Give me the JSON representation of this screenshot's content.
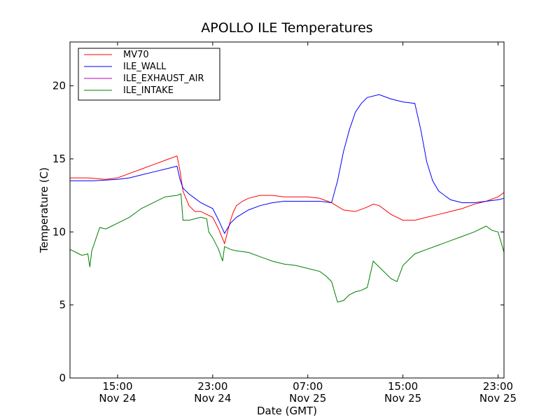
{
  "chart_data": {
    "type": "line",
    "title": "APOLLO ILE Temperatures",
    "xlabel": "Date (GMT)",
    "ylabel": "Temperature (C)",
    "xlim": [
      "2012-11-24 11:00",
      "2012-11-25 23:30"
    ],
    "ylim": [
      0,
      23
    ],
    "x_ticks": [
      {
        "time": "2012-11-24 15:00",
        "line1": "15:00",
        "line2": "Nov 24"
      },
      {
        "time": "2012-11-24 23:00",
        "line1": "23:00",
        "line2": "Nov 24"
      },
      {
        "time": "2012-11-25 07:00",
        "line1": "07:00",
        "line2": "Nov 25"
      },
      {
        "time": "2012-11-25 15:00",
        "line1": "15:00",
        "line2": "Nov 25"
      },
      {
        "time": "2012-11-25 23:00",
        "line1": "23:00",
        "line2": "Nov 25"
      }
    ],
    "y_ticks": [
      0,
      5,
      10,
      15,
      20
    ],
    "grid": false,
    "legend_position": "top-left",
    "series": [
      {
        "name": "MV70",
        "color": "#ff0000",
        "x": [
          "2012-11-24 11:00",
          "2012-11-24 12:30",
          "2012-11-24 14:00",
          "2012-11-24 15:00",
          "2012-11-24 16:00",
          "2012-11-24 17:00",
          "2012-11-24 18:00",
          "2012-11-24 19:00",
          "2012-11-24 20:00",
          "2012-11-24 20:15",
          "2012-11-24 20:30",
          "2012-11-24 21:00",
          "2012-11-24 21:30",
          "2012-11-24 22:00",
          "2012-11-24 23:00",
          "2012-11-24 23:30",
          "2012-11-25 00:00",
          "2012-11-25 00:30",
          "2012-11-25 00:45",
          "2012-11-25 01:00",
          "2012-11-25 01:30",
          "2012-11-25 02:00",
          "2012-11-25 03:00",
          "2012-11-25 04:00",
          "2012-11-25 05:00",
          "2012-11-25 06:00",
          "2012-11-25 07:00",
          "2012-11-25 08:00",
          "2012-11-25 09:00",
          "2012-11-25 10:00",
          "2012-11-25 11:00",
          "2012-11-25 12:00",
          "2012-11-25 12:30",
          "2012-11-25 13:00",
          "2012-11-25 14:00",
          "2012-11-25 15:00",
          "2012-11-25 16:00",
          "2012-11-25 17:00",
          "2012-11-25 18:00",
          "2012-11-25 19:00",
          "2012-11-25 20:00",
          "2012-11-25 21:00",
          "2012-11-25 22:00",
          "2012-11-25 23:00",
          "2012-11-25 23:30"
        ],
        "y": [
          13.7,
          13.7,
          13.6,
          13.7,
          14.0,
          14.3,
          14.6,
          14.9,
          15.2,
          14.2,
          12.8,
          11.8,
          11.4,
          11.4,
          11.0,
          10.2,
          9.2,
          10.8,
          11.4,
          11.8,
          12.1,
          12.3,
          12.5,
          12.5,
          12.4,
          12.4,
          12.4,
          12.3,
          12.0,
          11.5,
          11.4,
          11.7,
          11.9,
          11.8,
          11.2,
          10.8,
          10.8,
          11.0,
          11.2,
          11.4,
          11.6,
          11.9,
          12.1,
          12.4,
          12.7
        ]
      },
      {
        "name": "ILE_WALL",
        "color": "#0000ff",
        "x": [
          "2012-11-24 11:00",
          "2012-11-24 13:00",
          "2012-11-24 15:00",
          "2012-11-24 16:00",
          "2012-11-24 17:00",
          "2012-11-24 18:00",
          "2012-11-24 19:00",
          "2012-11-24 20:00",
          "2012-11-24 20:15",
          "2012-11-24 20:30",
          "2012-11-24 21:00",
          "2012-11-24 21:30",
          "2012-11-24 22:00",
          "2012-11-24 23:00",
          "2012-11-24 23:30",
          "2012-11-25 00:00",
          "2012-11-25 00:30",
          "2012-11-25 01:00",
          "2012-11-25 02:00",
          "2012-11-25 03:00",
          "2012-11-25 04:00",
          "2012-11-25 05:00",
          "2012-11-25 06:00",
          "2012-11-25 07:00",
          "2012-11-25 08:00",
          "2012-11-25 09:00",
          "2012-11-25 09:30",
          "2012-11-25 10:00",
          "2012-11-25 10:30",
          "2012-11-25 11:00",
          "2012-11-25 11:30",
          "2012-11-25 12:00",
          "2012-11-25 13:00",
          "2012-11-25 14:00",
          "2012-11-25 15:00",
          "2012-11-25 16:00",
          "2012-11-25 16:30",
          "2012-11-25 17:00",
          "2012-11-25 17:30",
          "2012-11-25 18:00",
          "2012-11-25 19:00",
          "2012-11-25 20:00",
          "2012-11-25 21:00",
          "2012-11-25 22:00",
          "2012-11-25 23:00",
          "2012-11-25 23:30"
        ],
        "y": [
          13.5,
          13.5,
          13.6,
          13.7,
          13.9,
          14.1,
          14.3,
          14.5,
          13.6,
          13.0,
          12.6,
          12.3,
          12.0,
          11.6,
          10.8,
          9.9,
          10.6,
          11.0,
          11.5,
          11.8,
          12.0,
          12.1,
          12.1,
          12.1,
          12.1,
          12.0,
          13.5,
          15.5,
          17.0,
          18.2,
          18.8,
          19.2,
          19.4,
          19.1,
          18.9,
          18.8,
          17.0,
          14.8,
          13.5,
          12.8,
          12.2,
          12.0,
          12.0,
          12.1,
          12.2,
          12.3
        ]
      },
      {
        "name": "ILE_EXHAUST_AIR",
        "color": "#bf00bf",
        "x": [],
        "y": []
      },
      {
        "name": "ILE_INTAKE",
        "color": "#007f00",
        "x": [
          "2012-11-24 11:00",
          "2012-11-24 11:30",
          "2012-11-24 12:00",
          "2012-11-24 12:30",
          "2012-11-24 12:40",
          "2012-11-24 12:50",
          "2012-11-24 13:30",
          "2012-11-24 14:00",
          "2012-11-24 14:30",
          "2012-11-24 15:00",
          "2012-11-24 16:00",
          "2012-11-24 17:00",
          "2012-11-24 18:00",
          "2012-11-24 19:00",
          "2012-11-24 20:00",
          "2012-11-24 20:20",
          "2012-11-24 20:30",
          "2012-11-24 21:00",
          "2012-11-24 22:00",
          "2012-11-24 22:30",
          "2012-11-24 22:40",
          "2012-11-24 23:00",
          "2012-11-24 23:30",
          "2012-11-24 23:50",
          "2012-11-25 00:00",
          "2012-11-25 00:30",
          "2012-11-25 01:00",
          "2012-11-25 02:00",
          "2012-11-25 03:00",
          "2012-11-25 04:00",
          "2012-11-25 05:00",
          "2012-11-25 06:00",
          "2012-11-25 07:00",
          "2012-11-25 08:00",
          "2012-11-25 08:30",
          "2012-11-25 09:00",
          "2012-11-25 09:30",
          "2012-11-25 10:00",
          "2012-11-25 10:30",
          "2012-11-25 11:00",
          "2012-11-25 11:30",
          "2012-11-25 12:00",
          "2012-11-25 12:30",
          "2012-11-25 13:00",
          "2012-11-25 14:00",
          "2012-11-25 14:30",
          "2012-11-25 15:00",
          "2012-11-25 16:00",
          "2012-11-25 17:00",
          "2012-11-25 18:00",
          "2012-11-25 19:00",
          "2012-11-25 20:00",
          "2012-11-25 21:00",
          "2012-11-25 22:00",
          "2012-11-25 22:30",
          "2012-11-25 23:00",
          "2012-11-25 23:30"
        ],
        "y": [
          8.8,
          8.6,
          8.4,
          8.5,
          7.6,
          8.7,
          10.3,
          10.2,
          10.4,
          10.6,
          11.0,
          11.6,
          12.0,
          12.4,
          12.5,
          12.6,
          10.8,
          10.8,
          11.0,
          10.9,
          10.0,
          9.6,
          8.8,
          8.0,
          9.0,
          8.8,
          8.7,
          8.6,
          8.3,
          8.0,
          7.8,
          7.7,
          7.5,
          7.3,
          7.0,
          6.6,
          5.2,
          5.3,
          5.7,
          5.9,
          6.0,
          6.2,
          8.0,
          7.6,
          6.8,
          6.6,
          7.7,
          8.5,
          8.8,
          9.1,
          9.4,
          9.7,
          10.0,
          10.4,
          10.1,
          10.0,
          8.6
        ]
      }
    ]
  }
}
